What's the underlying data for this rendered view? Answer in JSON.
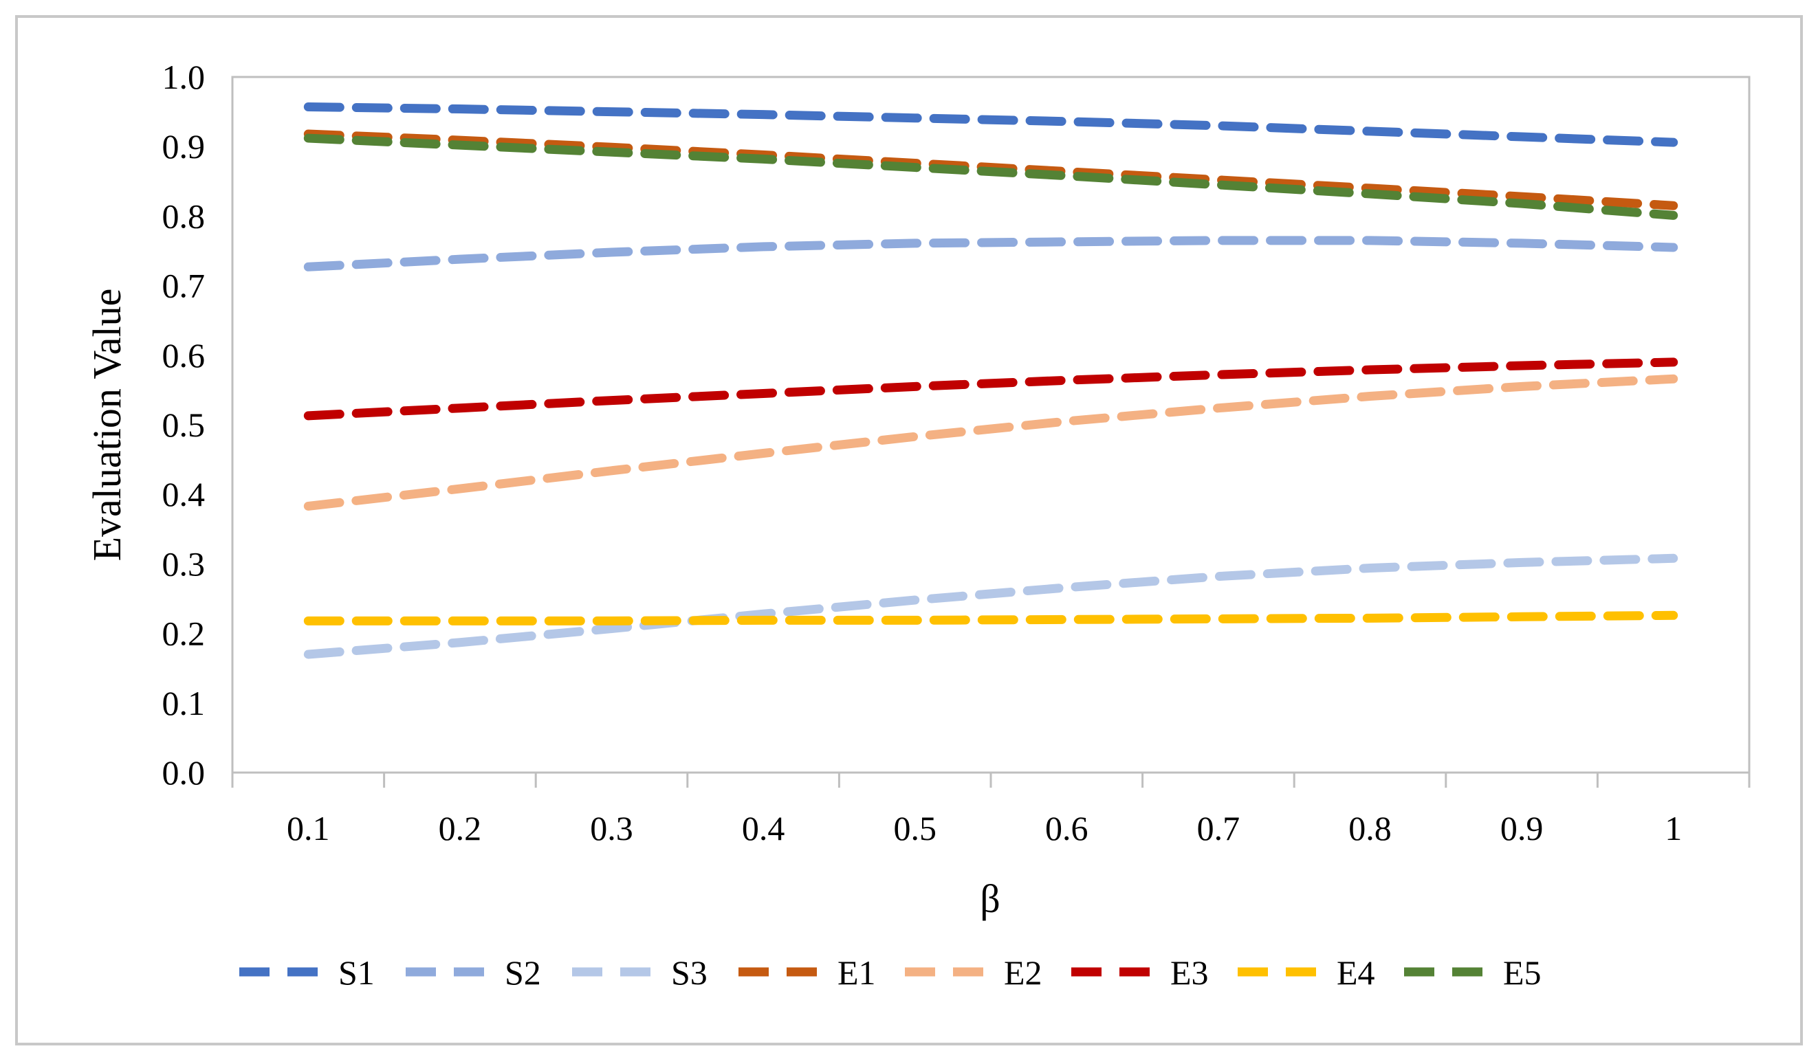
{
  "chart_data": {
    "type": "line",
    "title": "",
    "xlabel": "β",
    "ylabel": "Evaluation Value",
    "categories": [
      "0.1",
      "0.2",
      "0.3",
      "0.4",
      "0.5",
      "0.6",
      "0.7",
      "0.8",
      "0.9",
      "1"
    ],
    "ylim": [
      0,
      1
    ],
    "yticks": [
      "0.0",
      "0.1",
      "0.2",
      "0.3",
      "0.4",
      "0.5",
      "0.6",
      "0.7",
      "0.8",
      "0.9",
      "1.0"
    ],
    "grid": false,
    "legend_position": "bottom",
    "line_style": "dashed",
    "series": [
      {
        "name": "S1",
        "color": "#4472C4",
        "values": [
          0.957,
          0.954,
          0.95,
          0.946,
          0.941,
          0.936,
          0.93,
          0.922,
          0.914,
          0.906
        ]
      },
      {
        "name": "S2",
        "color": "#8FAADC",
        "values": [
          0.727,
          0.738,
          0.748,
          0.756,
          0.761,
          0.763,
          0.765,
          0.765,
          0.761,
          0.755
        ]
      },
      {
        "name": "S3",
        "color": "#B4C7E7",
        "values": [
          0.17,
          0.187,
          0.207,
          0.228,
          0.248,
          0.266,
          0.282,
          0.294,
          0.302,
          0.308
        ]
      },
      {
        "name": "E1",
        "color": "#C55A11",
        "values": [
          0.918,
          0.909,
          0.899,
          0.888,
          0.876,
          0.864,
          0.852,
          0.84,
          0.828,
          0.815
        ]
      },
      {
        "name": "E2",
        "color": "#F4B183",
        "values": [
          0.383,
          0.408,
          0.434,
          0.459,
          0.483,
          0.505,
          0.524,
          0.541,
          0.555,
          0.566
        ]
      },
      {
        "name": "E3",
        "color": "#C00000",
        "values": [
          0.513,
          0.524,
          0.535,
          0.545,
          0.555,
          0.564,
          0.572,
          0.579,
          0.585,
          0.59
        ]
      },
      {
        "name": "E4",
        "color": "#FFC000",
        "values": [
          0.218,
          0.218,
          0.218,
          0.219,
          0.219,
          0.22,
          0.221,
          0.222,
          0.224,
          0.226
        ]
      },
      {
        "name": "E5",
        "color": "#548235",
        "values": [
          0.912,
          0.902,
          0.892,
          0.882,
          0.87,
          0.858,
          0.845,
          0.832,
          0.818,
          0.801
        ]
      }
    ]
  }
}
